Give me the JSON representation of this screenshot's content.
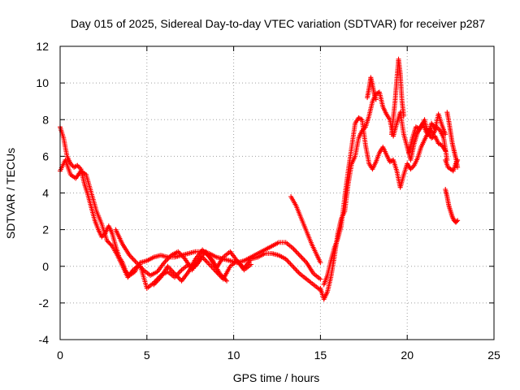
{
  "chart_data": {
    "type": "scatter",
    "title": "Day 015 of 2025, Sidereal Day-to-day VTEC variation (SDTVAR) for receiver p287",
    "xlabel": "GPS time / hours",
    "ylabel": "SDTVAR / TECUs",
    "xlim": [
      0,
      25
    ],
    "ylim": [
      -4,
      12
    ],
    "xticks": [
      "0",
      "5",
      "10",
      "15",
      "20",
      "25"
    ],
    "yticks": [
      "-4",
      "-2",
      "0",
      "2",
      "4",
      "6",
      "8",
      "10",
      "12"
    ],
    "grid": true,
    "marker": "plus",
    "series": [
      {
        "name": "SDTVAR",
        "color": "#ff0000",
        "tracks": [
          {
            "x": [
              0.0,
              0.2,
              0.4,
              0.6,
              0.8,
              1.0,
              1.2,
              1.4,
              1.6,
              1.8,
              2.0,
              2.2,
              2.4,
              2.6,
              2.8,
              3.0,
              3.2,
              3.4,
              3.6,
              3.8,
              4.0,
              4.3,
              4.6,
              5.0,
              5.4,
              5.8,
              6.2,
              6.6,
              7.0,
              7.4,
              7.8,
              8.2,
              8.6,
              9.0,
              9.4,
              9.8,
              10.2,
              10.6,
              11.0,
              11.4,
              11.8,
              12.2,
              12.6,
              13.0,
              13.4,
              13.8,
              14.2,
              14.6,
              15.0
            ],
            "y": [
              7.6,
              7.0,
              6.0,
              5.6,
              5.4,
              5.5,
              5.3,
              4.5,
              3.9,
              3.2,
              2.5,
              2.0,
              1.6,
              1.8,
              2.2,
              1.8,
              1.1,
              0.5,
              0.2,
              -0.3,
              -0.5,
              -0.3,
              0.2,
              0.3,
              0.5,
              0.6,
              0.5,
              0.5,
              0.6,
              0.7,
              0.8,
              0.8,
              0.7,
              0.5,
              0.4,
              0.3,
              0.2,
              0.3,
              0.5,
              0.7,
              0.9,
              1.1,
              1.3,
              1.3,
              1.0,
              0.6,
              0.2,
              -0.4,
              -0.7
            ]
          },
          {
            "x": [
              0.0,
              0.3,
              0.6,
              0.9,
              1.2,
              1.5,
              1.8,
              2.1,
              2.4,
              2.7,
              3.0,
              3.3,
              3.6,
              3.9,
              4.2,
              4.6,
              5.0,
              5.4,
              5.8,
              6.2,
              6.6,
              7.0,
              7.4,
              7.8,
              8.2,
              8.6,
              9.0,
              9.4,
              9.8,
              10.2,
              10.6,
              11.0,
              11.4,
              11.8,
              12.2,
              12.6,
              13.0,
              13.4,
              13.8,
              14.2,
              14.6,
              15.0
            ],
            "y": [
              5.2,
              5.8,
              5.0,
              4.8,
              5.2,
              5.0,
              4.0,
              3.0,
              2.3,
              1.4,
              1.1,
              0.6,
              0.0,
              -0.6,
              -0.2,
              0.1,
              -1.2,
              -0.9,
              -0.5,
              -0.3,
              -0.6,
              -0.2,
              0.1,
              0.0,
              0.5,
              0.1,
              -0.3,
              -0.7,
              0.0,
              0.3,
              -0.1,
              0.4,
              0.5,
              0.7,
              0.7,
              0.6,
              0.4,
              0.0,
              -0.4,
              -0.7,
              -1.0,
              -1.3
            ]
          },
          {
            "x": [
              3.2,
              3.6,
              4.0,
              4.4,
              4.8,
              5.2,
              5.6,
              6.0,
              6.4,
              6.8,
              7.2,
              7.6,
              8.0,
              8.4,
              8.8,
              9.2,
              9.6
            ],
            "y": [
              2.0,
              1.2,
              0.6,
              0.2,
              -0.2,
              -0.5,
              -0.3,
              0.2,
              0.6,
              0.8,
              0.4,
              -0.2,
              0.4,
              0.8,
              0.3,
              -0.4,
              -0.8
            ]
          },
          {
            "x": [
              5.4,
              5.8,
              6.2,
              6.6,
              7.0,
              7.4,
              7.8,
              8.2,
              8.6,
              9.0,
              9.4,
              9.8,
              10.2,
              10.6,
              11.0
            ],
            "y": [
              -1.0,
              -0.6,
              0.0,
              -0.4,
              -0.8,
              -0.3,
              0.4,
              0.9,
              0.5,
              -0.1,
              0.5,
              0.8,
              0.3,
              -0.2,
              0.1
            ]
          },
          {
            "x": [
              13.3,
              13.6,
              13.9,
              14.2,
              14.5,
              14.8,
              15.0
            ],
            "y": [
              3.8,
              3.3,
              2.6,
              1.9,
              1.2,
              0.6,
              0.2
            ]
          },
          {
            "x": [
              15.0,
              15.2,
              15.4,
              15.6,
              15.8,
              16.0,
              16.2,
              16.4,
              16.6,
              16.8,
              17.0,
              17.2,
              17.4,
              17.6,
              17.8,
              18.0,
              18.2,
              18.4,
              18.6,
              18.8,
              19.0,
              19.2,
              19.4,
              19.6,
              19.8,
              20.0,
              20.2,
              20.4,
              20.6,
              20.8,
              21.0,
              21.2,
              21.4,
              21.6,
              21.8,
              22.0,
              22.2
            ],
            "y": [
              -1.2,
              -1.8,
              -1.4,
              -0.6,
              0.5,
              1.8,
              2.6,
              3.0,
              4.5,
              5.6,
              6.0,
              7.0,
              7.4,
              7.6,
              8.2,
              9.0,
              9.4,
              9.5,
              8.7,
              8.3,
              8.0,
              7.1,
              7.8,
              8.4,
              7.2,
              6.5,
              5.8,
              6.7,
              7.3,
              7.6,
              8.0,
              7.2,
              7.8,
              7.5,
              8.3,
              7.7,
              7.2
            ]
          },
          {
            "x": [
              15.2,
              15.4,
              15.6,
              15.8,
              16.0,
              16.2,
              16.4,
              16.6,
              16.8,
              17.0,
              17.2,
              17.4,
              17.6,
              17.8,
              18.0,
              18.2,
              18.4,
              18.6,
              18.8,
              19.0,
              19.2,
              19.4,
              19.6,
              19.8,
              20.0,
              20.2,
              20.4,
              20.6,
              20.8,
              21.0,
              21.2,
              21.4,
              21.6,
              21.8,
              22.0,
              22.2
            ],
            "y": [
              -1.0,
              -0.5,
              0.3,
              1.0,
              1.5,
              2.2,
              3.8,
              5.2,
              6.5,
              7.8,
              8.1,
              8.0,
              6.6,
              5.6,
              5.3,
              5.7,
              6.2,
              6.5,
              6.1,
              5.7,
              5.8,
              5.2,
              4.3,
              5.0,
              5.6,
              5.3,
              5.5,
              5.9,
              6.5,
              6.9,
              7.3,
              7.0,
              7.1,
              6.7,
              6.6,
              6.3
            ]
          },
          {
            "x": [
              17.7,
              17.8,
              17.9,
              18.0,
              18.1,
              18.2
            ],
            "y": [
              9.2,
              9.7,
              10.3,
              9.9,
              9.4,
              9.1
            ]
          },
          {
            "x": [
              19.1,
              19.2,
              19.3,
              19.4,
              19.5,
              19.6,
              19.7,
              19.8
            ],
            "y": [
              7.2,
              8.1,
              9.0,
              10.2,
              11.3,
              10.5,
              9.0,
              8.2
            ]
          },
          {
            "x": [
              20.1,
              20.3,
              20.5,
              20.7,
              20.9,
              21.1,
              21.3,
              21.5,
              21.7,
              21.9,
              22.1,
              22.3
            ],
            "y": [
              6.2,
              7.0,
              7.6,
              7.5,
              7.8,
              7.3,
              7.5,
              7.2,
              7.6,
              7.4,
              7.0,
              5.8
            ]
          },
          {
            "x": [
              22.2,
              22.35,
              22.5,
              22.65,
              22.8,
              22.9
            ],
            "y": [
              5.8,
              5.4,
              5.3,
              5.2,
              5.6,
              5.8
            ]
          },
          {
            "x": [
              22.3,
              22.4,
              22.5,
              22.6,
              22.7,
              22.8,
              22.9
            ],
            "y": [
              8.4,
              7.9,
              7.3,
              6.7,
              6.3,
              5.9,
              5.4
            ]
          },
          {
            "x": [
              22.2,
              22.3,
              22.4,
              22.5,
              22.6,
              22.7,
              22.8,
              22.9
            ],
            "y": [
              4.2,
              3.8,
              3.3,
              3.0,
              2.7,
              2.5,
              2.4,
              2.5
            ]
          }
        ]
      }
    ]
  }
}
